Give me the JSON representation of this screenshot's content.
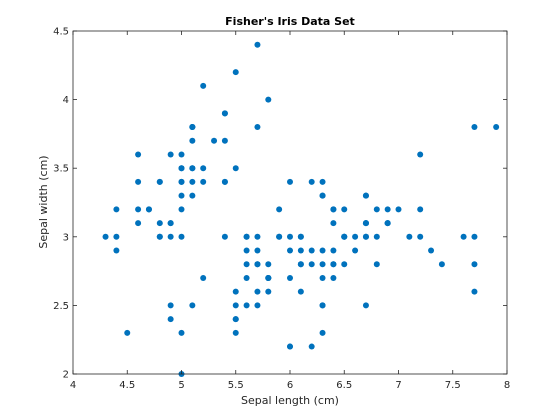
{
  "chart_data": {
    "type": "scatter",
    "title": "Fisher's Iris Data Set",
    "xlabel": "Sepal length (cm)",
    "ylabel": "Sepal width (cm)",
    "xlim": [
      4,
      8
    ],
    "ylim": [
      2,
      4.5
    ],
    "xticks": [
      "4",
      "4.5",
      "5",
      "5.5",
      "6",
      "6.5",
      "7",
      "7.5",
      "8"
    ],
    "yticks": [
      "2",
      "2.5",
      "3",
      "3.5",
      "4",
      "4.5"
    ],
    "grid": false,
    "marker_color": "#0072BD",
    "points": [
      [
        5.1,
        3.5
      ],
      [
        4.9,
        3.0
      ],
      [
        4.7,
        3.2
      ],
      [
        4.6,
        3.1
      ],
      [
        5.0,
        3.6
      ],
      [
        5.4,
        3.9
      ],
      [
        4.6,
        3.4
      ],
      [
        5.0,
        3.4
      ],
      [
        4.4,
        2.9
      ],
      [
        4.9,
        3.1
      ],
      [
        5.4,
        3.7
      ],
      [
        4.8,
        3.4
      ],
      [
        4.8,
        3.0
      ],
      [
        4.3,
        3.0
      ],
      [
        5.8,
        4.0
      ],
      [
        5.7,
        4.4
      ],
      [
        5.4,
        3.9
      ],
      [
        5.1,
        3.5
      ],
      [
        5.7,
        3.8
      ],
      [
        5.1,
        3.8
      ],
      [
        5.4,
        3.4
      ],
      [
        5.1,
        3.7
      ],
      [
        4.6,
        3.6
      ],
      [
        5.1,
        3.3
      ],
      [
        4.8,
        3.4
      ],
      [
        5.0,
        3.0
      ],
      [
        5.0,
        3.4
      ],
      [
        5.2,
        3.5
      ],
      [
        5.2,
        3.4
      ],
      [
        4.7,
        3.2
      ],
      [
        4.8,
        3.1
      ],
      [
        5.4,
        3.4
      ],
      [
        5.2,
        4.1
      ],
      [
        5.5,
        4.2
      ],
      [
        4.9,
        3.1
      ],
      [
        5.0,
        3.2
      ],
      [
        5.5,
        3.5
      ],
      [
        4.9,
        3.6
      ],
      [
        4.4,
        3.0
      ],
      [
        5.1,
        3.4
      ],
      [
        5.0,
        3.5
      ],
      [
        4.5,
        2.3
      ],
      [
        4.4,
        3.2
      ],
      [
        5.0,
        3.5
      ],
      [
        5.1,
        3.8
      ],
      [
        4.8,
        3.0
      ],
      [
        5.1,
        3.8
      ],
      [
        4.6,
        3.2
      ],
      [
        5.3,
        3.7
      ],
      [
        5.0,
        3.3
      ],
      [
        7.0,
        3.2
      ],
      [
        6.4,
        3.2
      ],
      [
        6.9,
        3.1
      ],
      [
        5.5,
        2.3
      ],
      [
        6.5,
        2.8
      ],
      [
        5.7,
        2.8
      ],
      [
        6.3,
        3.3
      ],
      [
        4.9,
        2.4
      ],
      [
        6.6,
        2.9
      ],
      [
        5.2,
        2.7
      ],
      [
        5.0,
        2.0
      ],
      [
        5.9,
        3.0
      ],
      [
        6.0,
        2.2
      ],
      [
        6.1,
        2.9
      ],
      [
        5.6,
        2.9
      ],
      [
        6.7,
        3.1
      ],
      [
        5.6,
        3.0
      ],
      [
        5.8,
        2.7
      ],
      [
        6.2,
        2.2
      ],
      [
        5.6,
        2.5
      ],
      [
        5.9,
        3.2
      ],
      [
        6.1,
        2.8
      ],
      [
        6.3,
        2.5
      ],
      [
        6.1,
        2.8
      ],
      [
        6.4,
        2.9
      ],
      [
        6.6,
        3.0
      ],
      [
        6.8,
        2.8
      ],
      [
        6.7,
        3.0
      ],
      [
        6.0,
        2.9
      ],
      [
        5.7,
        2.6
      ],
      [
        5.5,
        2.4
      ],
      [
        5.5,
        2.4
      ],
      [
        5.8,
        2.7
      ],
      [
        6.0,
        2.7
      ],
      [
        5.4,
        3.0
      ],
      [
        6.0,
        3.4
      ],
      [
        6.7,
        3.1
      ],
      [
        6.3,
        2.3
      ],
      [
        5.6,
        3.0
      ],
      [
        5.5,
        2.5
      ],
      [
        5.5,
        2.6
      ],
      [
        6.1,
        3.0
      ],
      [
        5.8,
        2.6
      ],
      [
        5.0,
        2.3
      ],
      [
        5.6,
        2.7
      ],
      [
        5.7,
        3.0
      ],
      [
        5.7,
        2.9
      ],
      [
        6.2,
        2.9
      ],
      [
        5.1,
        2.5
      ],
      [
        5.7,
        2.8
      ],
      [
        6.3,
        3.3
      ],
      [
        5.8,
        2.7
      ],
      [
        7.1,
        3.0
      ],
      [
        6.3,
        2.9
      ],
      [
        6.5,
        3.0
      ],
      [
        7.6,
        3.0
      ],
      [
        4.9,
        2.5
      ],
      [
        7.3,
        2.9
      ],
      [
        6.7,
        2.5
      ],
      [
        7.2,
        3.6
      ],
      [
        6.5,
        3.2
      ],
      [
        6.4,
        2.7
      ],
      [
        6.8,
        3.0
      ],
      [
        5.7,
        2.5
      ],
      [
        5.8,
        2.8
      ],
      [
        6.4,
        3.2
      ],
      [
        6.5,
        3.0
      ],
      [
        7.7,
        3.8
      ],
      [
        7.7,
        2.6
      ],
      [
        6.0,
        2.2
      ],
      [
        6.9,
        3.2
      ],
      [
        5.6,
        2.8
      ],
      [
        7.7,
        2.8
      ],
      [
        6.3,
        2.7
      ],
      [
        6.7,
        3.3
      ],
      [
        7.2,
        3.2
      ],
      [
        6.2,
        2.8
      ],
      [
        6.1,
        3.0
      ],
      [
        6.4,
        2.8
      ],
      [
        7.2,
        3.0
      ],
      [
        7.4,
        2.8
      ],
      [
        7.9,
        3.8
      ],
      [
        6.4,
        2.8
      ],
      [
        6.3,
        2.8
      ],
      [
        6.1,
        2.6
      ],
      [
        7.7,
        3.0
      ],
      [
        6.3,
        3.4
      ],
      [
        6.4,
        3.1
      ],
      [
        6.0,
        3.0
      ],
      [
        6.9,
        3.1
      ],
      [
        6.7,
        3.1
      ],
      [
        6.9,
        3.1
      ],
      [
        5.8,
        2.7
      ],
      [
        6.8,
        3.2
      ],
      [
        6.7,
        3.3
      ],
      [
        6.7,
        3.0
      ],
      [
        6.3,
        2.5
      ],
      [
        6.5,
        3.0
      ],
      [
        6.2,
        3.4
      ],
      [
        5.9,
        3.0
      ]
    ]
  }
}
